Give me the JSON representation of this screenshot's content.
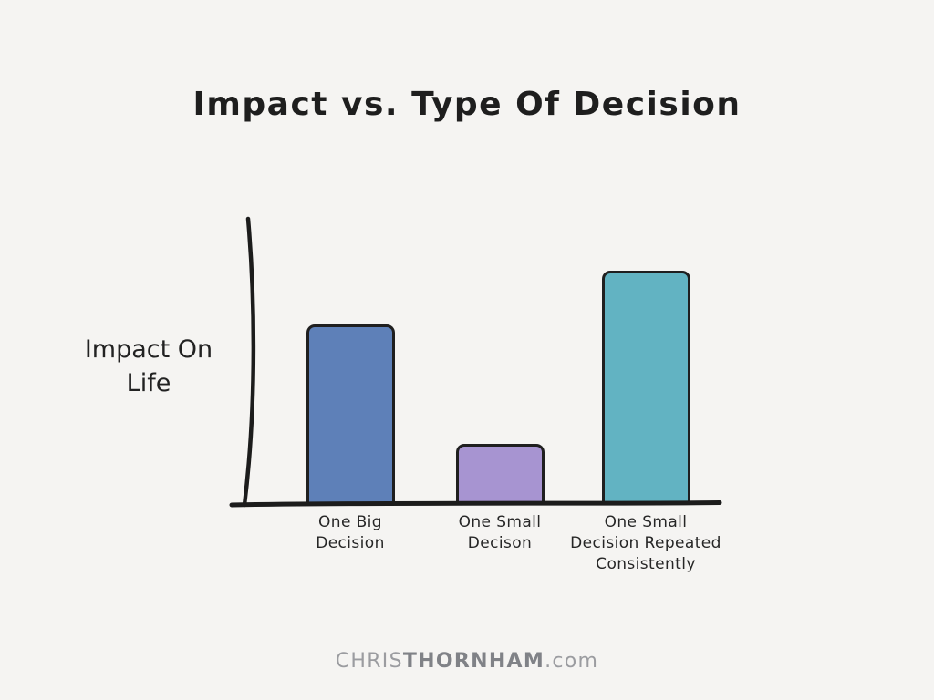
{
  "page": {
    "background": "#f5f4f2",
    "footer": {
      "prefix": "CHRIS",
      "bold": "THORNHAM",
      "suffix": ".com"
    }
  },
  "chart_data": {
    "type": "bar",
    "title": "Impact vs. Type Of Decision",
    "ylabel": "Impact On Life",
    "ylabel_lines": [
      "Impact On",
      "Life"
    ],
    "xlabel": "",
    "categories": [
      "One Big Decision",
      "One Small Decison",
      "One Small Decision Repeated Consistently"
    ],
    "category_label_lines": [
      [
        "One Big",
        "Decision"
      ],
      [
        "One Small",
        "Decison"
      ],
      [
        "One Small",
        "Decision Repeated",
        "Consistently"
      ]
    ],
    "values": [
      63,
      21,
      82
    ],
    "ylim": [
      0,
      100
    ],
    "y_ticks": [],
    "grid": false,
    "legend": null,
    "bar_colors": [
      "#5e80b8",
      "#a794d1",
      "#62b3c2"
    ],
    "bar_outline_color": "#1f1f1f",
    "axis_color": "#1c1c1c",
    "title_color": "#1e1e1e",
    "footer_text": "CHRISTHORNHAM.com"
  }
}
